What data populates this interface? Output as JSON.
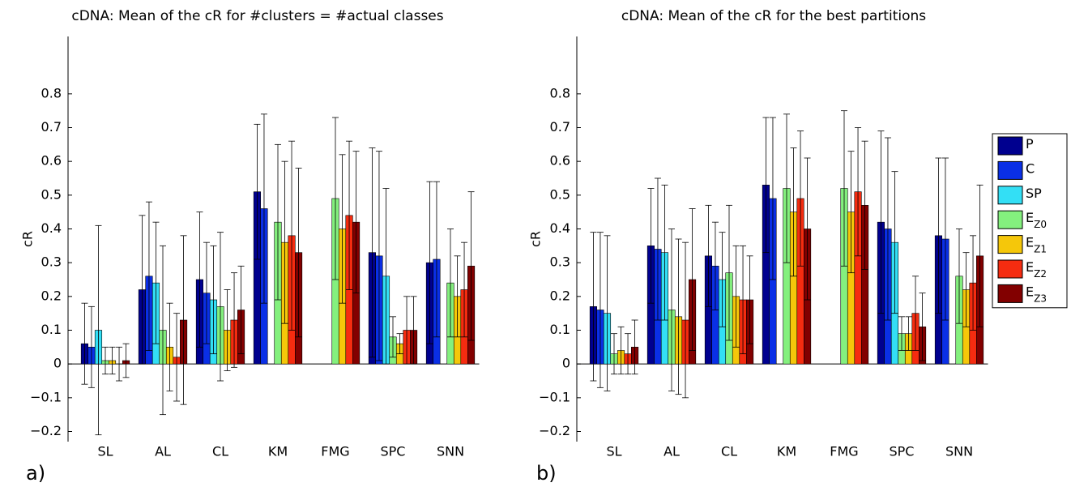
{
  "legend": {
    "position": "right",
    "entries": [
      {
        "name": "P",
        "color": "#00008f"
      },
      {
        "name": "C",
        "color": "#0a2fe6"
      },
      {
        "name": "SP",
        "color": "#33dff5"
      },
      {
        "name": "E",
        "sub": "Z0",
        "color": "#84f07e"
      },
      {
        "name": "E",
        "sub": "Z1",
        "color": "#f5c70a"
      },
      {
        "name": "E",
        "sub": "Z2",
        "color": "#f52c10"
      },
      {
        "name": "E",
        "sub": "Z3",
        "color": "#820000"
      }
    ]
  },
  "chart_data": [
    {
      "type": "bar",
      "title": "cDNA: Mean of the cR for #clusters = #actual classes",
      "ylabel": "cR",
      "panel_label": "a)",
      "categories": [
        "SL",
        "AL",
        "CL",
        "KM",
        "FMG",
        "SPC",
        "SNN"
      ],
      "ylim": [
        -0.23,
        0.97
      ],
      "yticks": [
        {
          "value": -0.2,
          "label": "−0.2"
        },
        {
          "value": -0.1,
          "label": "−0.1"
        },
        0,
        0.1,
        0.2,
        0.3,
        0.4,
        0.5,
        0.6,
        0.7,
        0.8
      ],
      "series": [
        {
          "values": [
            0.06,
            0.22,
            0.25,
            0.51,
            0,
            0.33,
            0.3
          ],
          "errors": [
            0.12,
            0.22,
            0.2,
            0.2,
            null,
            0.31,
            0.24
          ]
        },
        {
          "values": [
            0.05,
            0.26,
            0.21,
            0.46,
            0,
            0.32,
            0.31
          ],
          "errors": [
            0.12,
            0.22,
            0.15,
            0.28,
            null,
            0.31,
            0.23
          ]
        },
        {
          "values": [
            0.1,
            0.24,
            0.19,
            0,
            0,
            0.26,
            0
          ],
          "errors": [
            0.31,
            0.18,
            0.16,
            null,
            null,
            0.26,
            null
          ]
        },
        {
          "values": [
            0.01,
            0.1,
            0.17,
            0.42,
            0.49,
            0.08,
            0.24
          ],
          "errors": [
            0.04,
            0.25,
            0.22,
            0.23,
            0.24,
            0.06,
            0.16
          ]
        },
        {
          "values": [
            0.01,
            0.05,
            0.1,
            0.36,
            0.4,
            0.06,
            0.2
          ],
          "errors": [
            0.04,
            0.13,
            0.12,
            0.24,
            0.22,
            0.03,
            0.12
          ]
        },
        {
          "values": [
            0.0,
            0.02,
            0.13,
            0.38,
            0.44,
            0.1,
            0.22
          ],
          "errors": [
            0.05,
            0.13,
            0.14,
            0.28,
            0.22,
            0.1,
            0.14
          ]
        },
        {
          "values": [
            0.01,
            0.13,
            0.16,
            0.33,
            0.42,
            0.1,
            0.29
          ],
          "errors": [
            0.05,
            0.25,
            0.13,
            0.25,
            0.21,
            0.1,
            0.22
          ]
        }
      ]
    },
    {
      "type": "bar",
      "title": "cDNA: Mean of the cR for the best partitions",
      "ylabel": "cR",
      "panel_label": "b)",
      "categories": [
        "SL",
        "AL",
        "CL",
        "KM",
        "FMG",
        "SPC",
        "SNN"
      ],
      "ylim": [
        -0.23,
        0.97
      ],
      "yticks": [
        {
          "value": -0.2,
          "label": "−0.2"
        },
        {
          "value": -0.1,
          "label": "−0.1"
        },
        0,
        0.1,
        0.2,
        0.3,
        0.4,
        0.5,
        0.6,
        0.7,
        0.8
      ],
      "series": [
        {
          "values": [
            0.17,
            0.35,
            0.32,
            0.53,
            0,
            0.42,
            0.38
          ],
          "errors": [
            0.22,
            0.17,
            0.15,
            0.2,
            null,
            0.27,
            0.23
          ]
        },
        {
          "values": [
            0.16,
            0.34,
            0.29,
            0.49,
            0,
            0.4,
            0.37
          ],
          "errors": [
            0.23,
            0.21,
            0.13,
            0.24,
            null,
            0.27,
            0.24
          ]
        },
        {
          "values": [
            0.15,
            0.33,
            0.25,
            0,
            0,
            0.36,
            0
          ],
          "errors": [
            0.23,
            0.2,
            0.14,
            null,
            null,
            0.21,
            null
          ]
        },
        {
          "values": [
            0.03,
            0.16,
            0.27,
            0.52,
            0.52,
            0.09,
            0.26
          ],
          "errors": [
            0.06,
            0.24,
            0.2,
            0.22,
            0.23,
            0.05,
            0.14
          ]
        },
        {
          "values": [
            0.04,
            0.14,
            0.2,
            0.45,
            0.45,
            0.09,
            0.22
          ],
          "errors": [
            0.07,
            0.23,
            0.15,
            0.19,
            0.18,
            0.05,
            0.11
          ]
        },
        {
          "values": [
            0.03,
            0.13,
            0.19,
            0.49,
            0.51,
            0.15,
            0.24
          ],
          "errors": [
            0.06,
            0.23,
            0.16,
            0.2,
            0.19,
            0.11,
            0.14
          ]
        },
        {
          "values": [
            0.05,
            0.25,
            0.19,
            0.4,
            0.47,
            0.11,
            0.32
          ],
          "errors": [
            0.08,
            0.21,
            0.13,
            0.21,
            0.19,
            0.1,
            0.21
          ]
        }
      ]
    }
  ]
}
